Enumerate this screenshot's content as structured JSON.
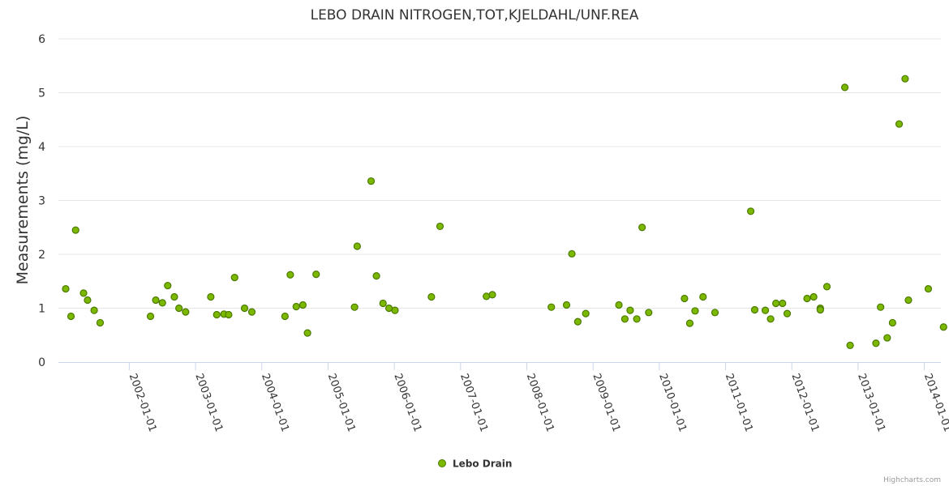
{
  "colors": {
    "marker_fill": "#7cb800",
    "marker_stroke": "#4a7a00",
    "grid": "#e6e6e6",
    "axis": "#ccd6eb"
  },
  "credits": "Highcharts.com",
  "chart_data": {
    "type": "scatter",
    "title": "LEBO DRAIN NITROGEN,TOT,KJELDAHL/UNF.REA",
    "xlabel": "",
    "ylabel": "Measurements (mg/L)",
    "ylim": [
      0,
      6
    ],
    "yticks": [
      "0",
      "1",
      "2",
      "3",
      "4",
      "5",
      "6"
    ],
    "xlim": [
      2000.93,
      2014.25
    ],
    "xticks": [
      {
        "label": "2002-01-01",
        "value": 2002
      },
      {
        "label": "2003-01-01",
        "value": 2003
      },
      {
        "label": "2004-01-01",
        "value": 2004
      },
      {
        "label": "2005-01-01",
        "value": 2005
      },
      {
        "label": "2006-01-01",
        "value": 2006
      },
      {
        "label": "2007-01-01",
        "value": 2007
      },
      {
        "label": "2008-01-01",
        "value": 2008
      },
      {
        "label": "2009-01-01",
        "value": 2009
      },
      {
        "label": "2010-01-01",
        "value": 2010
      },
      {
        "label": "2011-01-01",
        "value": 2011
      },
      {
        "label": "2012-01-01",
        "value": 2012
      },
      {
        "label": "2013-01-01",
        "value": 2013
      },
      {
        "label": "2014-01-01",
        "value": 2014
      }
    ],
    "legend": "bottom-center",
    "series": [
      {
        "name": "Lebo Drain",
        "points": [
          [
            2001.04,
            1.36
          ],
          [
            2001.12,
            0.85
          ],
          [
            2001.19,
            2.45
          ],
          [
            2001.31,
            1.28
          ],
          [
            2001.37,
            1.15
          ],
          [
            2001.47,
            0.96
          ],
          [
            2001.56,
            0.73
          ],
          [
            2002.32,
            0.85
          ],
          [
            2002.4,
            1.15
          ],
          [
            2002.5,
            1.1
          ],
          [
            2002.58,
            1.42
          ],
          [
            2002.68,
            1.21
          ],
          [
            2002.75,
            1.0
          ],
          [
            2002.85,
            0.93
          ],
          [
            2003.23,
            1.21
          ],
          [
            2003.32,
            0.88
          ],
          [
            2003.43,
            0.89
          ],
          [
            2003.5,
            0.88
          ],
          [
            2003.59,
            1.57
          ],
          [
            2003.74,
            1.0
          ],
          [
            2003.85,
            0.93
          ],
          [
            2004.35,
            0.85
          ],
          [
            2004.43,
            1.62
          ],
          [
            2004.52,
            1.03
          ],
          [
            2004.62,
            1.06
          ],
          [
            2004.69,
            0.54
          ],
          [
            2004.82,
            1.63
          ],
          [
            2005.4,
            1.02
          ],
          [
            2005.44,
            2.15
          ],
          [
            2005.65,
            3.36
          ],
          [
            2005.73,
            1.6
          ],
          [
            2005.83,
            1.09
          ],
          [
            2005.92,
            1.0
          ],
          [
            2006.01,
            0.96
          ],
          [
            2006.56,
            1.21
          ],
          [
            2006.69,
            2.52
          ],
          [
            2007.39,
            1.22
          ],
          [
            2007.48,
            1.25
          ],
          [
            2008.37,
            1.02
          ],
          [
            2008.6,
            1.06
          ],
          [
            2008.68,
            2.01
          ],
          [
            2008.77,
            0.75
          ],
          [
            2008.89,
            0.9
          ],
          [
            2009.39,
            1.06
          ],
          [
            2009.48,
            0.8
          ],
          [
            2009.56,
            0.96
          ],
          [
            2009.66,
            0.8
          ],
          [
            2009.74,
            2.5
          ],
          [
            2009.84,
            0.92
          ],
          [
            2010.38,
            1.18
          ],
          [
            2010.46,
            0.72
          ],
          [
            2010.54,
            0.95
          ],
          [
            2010.66,
            1.21
          ],
          [
            2010.84,
            0.92
          ],
          [
            2011.38,
            2.8
          ],
          [
            2011.44,
            0.97
          ],
          [
            2011.6,
            0.96
          ],
          [
            2011.68,
            0.8
          ],
          [
            2011.76,
            1.09
          ],
          [
            2011.86,
            1.09
          ],
          [
            2011.93,
            0.9
          ],
          [
            2012.23,
            1.18
          ],
          [
            2012.33,
            1.21
          ],
          [
            2012.43,
            1.0
          ],
          [
            2012.43,
            0.97
          ],
          [
            2012.53,
            1.4
          ],
          [
            2012.8,
            5.1
          ],
          [
            2012.88,
            0.31
          ],
          [
            2013.27,
            0.35
          ],
          [
            2013.34,
            1.02
          ],
          [
            2013.44,
            0.45
          ],
          [
            2013.52,
            0.73
          ],
          [
            2013.62,
            4.42
          ],
          [
            2013.71,
            5.26
          ],
          [
            2013.76,
            1.15
          ],
          [
            2014.06,
            1.36
          ],
          [
            2014.29,
            0.65
          ]
        ]
      }
    ]
  }
}
